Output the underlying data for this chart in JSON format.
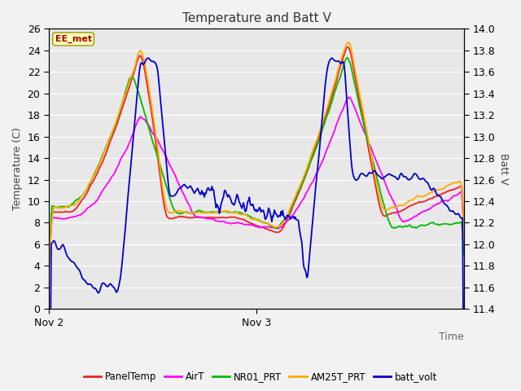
{
  "title": "Temperature and Batt V",
  "xlabel": "Time",
  "ylabel_left": "Temperature (C)",
  "ylabel_right": "Batt V",
  "annotation": "EE_met",
  "ylim_left": [
    0,
    26
  ],
  "ylim_right": [
    11.4,
    14.0
  ],
  "xtick_positions": [
    0.0,
    0.5
  ],
  "xtick_labels": [
    "Nov 2",
    "Nov 3"
  ],
  "yticks_left": [
    0,
    2,
    4,
    6,
    8,
    10,
    12,
    14,
    16,
    18,
    20,
    22,
    24,
    26
  ],
  "yticks_right": [
    11.4,
    11.6,
    11.8,
    12.0,
    12.2,
    12.4,
    12.6,
    12.8,
    13.0,
    13.2,
    13.4,
    13.6,
    13.8,
    14.0
  ],
  "series_colors": {
    "PanelTemp": "#ee2222",
    "AirT": "#ff00ff",
    "NR01_PRT": "#00bb00",
    "AM25T_PRT": "#ffaa00",
    "batt_volt": "#0000cc"
  },
  "plot_bg_color": "#e8e8e8",
  "fig_bg_color": "#f2f2f2",
  "grid_color": "#ffffff",
  "lw": 1.3
}
